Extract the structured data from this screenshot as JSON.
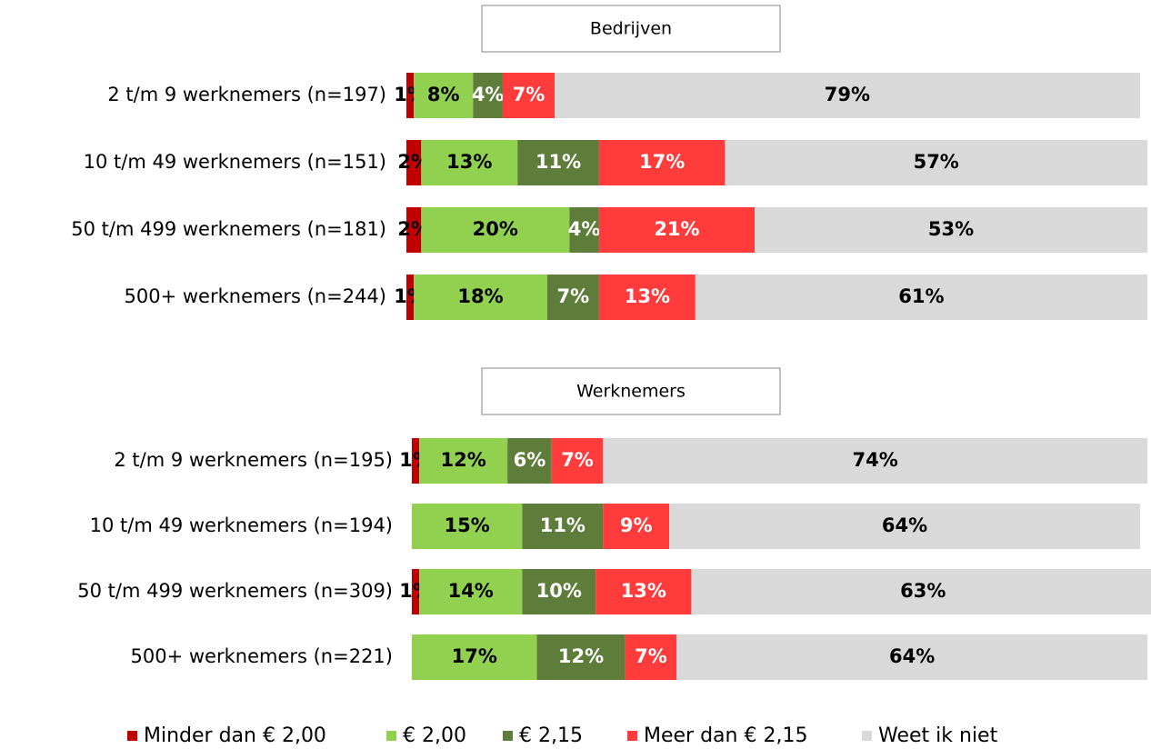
{
  "chart_data": [
    {
      "type": "stacked-barh",
      "title": "Bedrijven",
      "categories": [
        "2 t/m 9 werknemers  (n=197)",
        "10 t/m 49 werknemers  (n=151)",
        "50 t/m 499 werknemers  (n=181)",
        "500+ werknemers  (n=244)"
      ],
      "series": [
        {
          "name": "Minder dan € 2,00",
          "color": "#c00000",
          "label_color": "#000000",
          "values": [
            1,
            2,
            2,
            1
          ],
          "value_labels": [
            "1%",
            "2%",
            "2%",
            "1%"
          ]
        },
        {
          "name": "€ 2,00",
          "color": "#92d050",
          "label_color": "#000000",
          "values": [
            8,
            13,
            20,
            18
          ],
          "value_labels": [
            "8%",
            "13%",
            "20%",
            "18%"
          ]
        },
        {
          "name": "€ 2,15",
          "color": "#5e7d3a",
          "label_color": "#ffffff",
          "values": [
            4,
            11,
            4,
            7
          ],
          "value_labels": [
            "4%",
            "11%",
            "4%",
            "7%"
          ]
        },
        {
          "name": "Meer dan € 2,15",
          "color": "#ff3b3b",
          "label_color": "#ffffff",
          "values": [
            7,
            17,
            21,
            13
          ],
          "value_labels": [
            "7%",
            "17%",
            "21%",
            "13%"
          ]
        },
        {
          "name": "Weet ik niet",
          "color": "#d9d9d9",
          "label_color": "#000000",
          "values": [
            79,
            57,
            53,
            61
          ],
          "value_labels": [
            "79%",
            "57%",
            "53%",
            "61%"
          ]
        }
      ]
    },
    {
      "type": "stacked-barh",
      "title": "Werknemers",
      "categories": [
        "2 t/m 9 werknemers  (n=195)",
        "10 t/m 49 werknemers  (n=194)",
        "50 t/m 499 werknemers  (n=309)",
        "500+ werknemers  (n=221)"
      ],
      "series": [
        {
          "name": "Minder dan € 2,00",
          "color": "#c00000",
          "label_color": "#000000",
          "values": [
            1,
            0,
            1,
            0
          ],
          "value_labels": [
            "1%",
            null,
            "1%",
            null
          ]
        },
        {
          "name": "€ 2,00",
          "color": "#92d050",
          "label_color": "#000000",
          "values": [
            12,
            15,
            14,
            17
          ],
          "value_labels": [
            "12%",
            "15%",
            "14%",
            "17%"
          ]
        },
        {
          "name": "€ 2,15",
          "color": "#5e7d3a",
          "label_color": "#ffffff",
          "values": [
            6,
            11,
            10,
            12
          ],
          "value_labels": [
            "6%",
            "11%",
            "10%",
            "12%"
          ]
        },
        {
          "name": "Meer dan € 2,15",
          "color": "#ff3b3b",
          "label_color": "#ffffff",
          "values": [
            7,
            9,
            13,
            7
          ],
          "value_labels": [
            "7%",
            "9%",
            "13%",
            "7%"
          ]
        },
        {
          "name": "Weet ik niet",
          "color": "#d9d9d9",
          "label_color": "#000000",
          "values": [
            74,
            64,
            63,
            64
          ],
          "value_labels": [
            "74%",
            "64%",
            "63%",
            "64%"
          ]
        }
      ]
    }
  ]
}
